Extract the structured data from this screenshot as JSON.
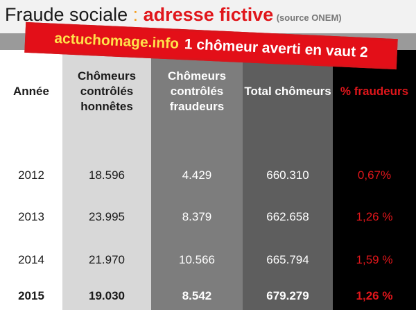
{
  "title": {
    "main": "Fraude sociale",
    "separator": " : ",
    "highlight": "adresse fictive",
    "source": "(source ONEM)"
  },
  "stamp": {
    "site": "actuchomage.info",
    "slogan": "1 chômeur averti en vaut 2"
  },
  "table": {
    "headers": {
      "year": "Année",
      "honest": "Chômeurs contrôlés honnêtes",
      "fraud": "Chômeurs contrôlés fraudeurs",
      "total": "Total chômeurs",
      "pct": "% fraudeurs"
    },
    "rows": [
      {
        "year": "2012",
        "honest": "18.596",
        "fraud": "4.429",
        "total": "660.310",
        "pct": "0,67%"
      },
      {
        "year": "2013",
        "honest": "23.995",
        "fraud": "8.379",
        "total": "662.658",
        "pct": "1,26 %"
      },
      {
        "year": "2014",
        "honest": "21.970",
        "fraud": "10.566",
        "total": "665.794",
        "pct": "1,59 %"
      },
      {
        "year": "2015",
        "honest": "19.030",
        "fraud": "8.542",
        "total": "679.279",
        "pct": "1,26 %"
      }
    ]
  },
  "colors": {
    "title_red": "#e0161b",
    "colon_orange": "#f4a020",
    "stamp_red": "#e30f18",
    "site_yellow": "#ffe14a"
  }
}
